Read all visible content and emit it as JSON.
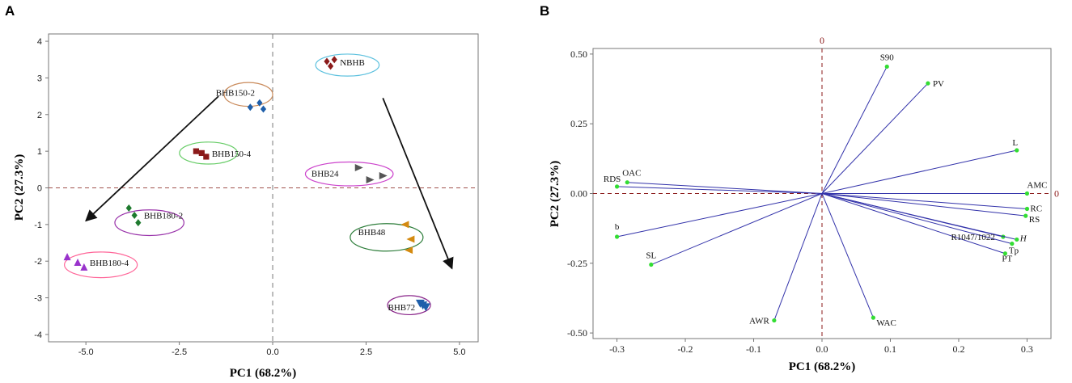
{
  "chart_data": [
    {
      "panel": "A",
      "type": "scatter",
      "xlabel": "PC1 (68.2%)",
      "ylabel": "PC2 (27.3%)",
      "xlim": [
        -6.0,
        5.5
      ],
      "ylim": [
        -4.2,
        4.2
      ],
      "xticks": [
        {
          "v": -5.0,
          "t": "-5.0"
        },
        {
          "v": -2.5,
          "t": "-2.5"
        },
        {
          "v": 0.0,
          "t": "0.0"
        },
        {
          "v": 2.5,
          "t": "2.5"
        },
        {
          "v": 5.0,
          "t": "5.0"
        }
      ],
      "yticks": [
        {
          "v": 4,
          "t": "4"
        },
        {
          "v": 3,
          "t": "3"
        },
        {
          "v": 2,
          "t": "2"
        },
        {
          "v": 1,
          "t": "1"
        },
        {
          "v": 0,
          "t": "0"
        },
        {
          "v": -1,
          "t": "-1"
        },
        {
          "v": -2,
          "t": "-2"
        },
        {
          "v": -3,
          "t": "-3"
        },
        {
          "v": -4,
          "t": "-4"
        }
      ],
      "groups": [
        {
          "name": "NBHB",
          "color": "#8b1a1a",
          "edge": "#5bc0de",
          "marker": "diamond",
          "points": [
            [
              1.45,
              3.45
            ],
            [
              1.65,
              3.5
            ],
            [
              1.55,
              3.32
            ]
          ],
          "center": [
            2.0,
            3.35
          ],
          "radius": [
            1.7,
            0.6
          ]
        },
        {
          "name": "BHB150-2",
          "color": "#1f5faa",
          "edge": "#c98a5a",
          "marker": "diamond",
          "points": [
            [
              -0.6,
              2.2
            ],
            [
              -0.35,
              2.32
            ],
            [
              -0.25,
              2.15
            ]
          ],
          "center": [
            -0.65,
            2.55
          ],
          "radius": [
            1.3,
            0.65
          ]
        },
        {
          "name": "BHB150-4",
          "color": "#8b1a1a",
          "edge": "#66cc66",
          "marker": "square",
          "points": [
            [
              -2.05,
              1.0
            ],
            [
              -1.9,
              0.95
            ],
            [
              -1.78,
              0.85
            ]
          ],
          "center": [
            -1.72,
            0.95
          ],
          "radius": [
            1.55,
            0.6
          ]
        },
        {
          "name": "BHB24",
          "color": "#555555",
          "edge": "#cc44cc",
          "marker": "triangle-right",
          "points": [
            [
              2.3,
              0.55
            ],
            [
              2.6,
              0.22
            ],
            [
              2.95,
              0.33
            ]
          ],
          "center": [
            2.05,
            0.38
          ],
          "radius": [
            2.35,
            0.65
          ]
        },
        {
          "name": "BHB180-2",
          "color": "#1e7a2e",
          "edge": "#9933aa",
          "marker": "diamond",
          "points": [
            [
              -3.85,
              -0.55
            ],
            [
              -3.7,
              -0.75
            ],
            [
              -3.6,
              -0.95
            ]
          ],
          "center": [
            -3.3,
            -0.95
          ],
          "radius": [
            1.85,
            0.7
          ]
        },
        {
          "name": "BHB48",
          "color": "#d48a10",
          "edge": "#2d7d3a",
          "marker": "triangle-left",
          "points": [
            [
              3.55,
              -1.0
            ],
            [
              3.7,
              -1.4
            ],
            [
              3.65,
              -1.7
            ]
          ],
          "center": [
            3.05,
            -1.35
          ],
          "radius": [
            1.95,
            0.75
          ]
        },
        {
          "name": "BHB180-4",
          "color": "#9933cc",
          "edge": "#ff6699",
          "marker": "triangle-up",
          "points": [
            [
              -5.5,
              -1.9
            ],
            [
              -5.22,
              -2.05
            ],
            [
              -5.05,
              -2.18
            ]
          ],
          "center": [
            -4.6,
            -2.1
          ],
          "radius": [
            1.95,
            0.7
          ]
        },
        {
          "name": "BHB72",
          "color": "#1f5faa",
          "edge": "#882288",
          "marker": "triangle-down",
          "points": [
            [
              3.95,
              -3.15
            ],
            [
              4.1,
              -3.25
            ],
            [
              4.02,
              -3.2
            ]
          ],
          "center": [
            3.65,
            -3.2
          ],
          "radius": [
            1.15,
            0.52
          ]
        }
      ],
      "arrows": [
        {
          "from": [
            -1.45,
            2.5
          ],
          "to": [
            -5.0,
            -0.9
          ]
        },
        {
          "from": [
            2.95,
            2.45
          ],
          "to": [
            4.8,
            -2.2
          ]
        }
      ]
    },
    {
      "panel": "B",
      "type": "biplot",
      "xlabel": "PC1 (68.2%)",
      "ylabel": "PC2 (27.3%)",
      "xlim": [
        -0.335,
        0.335
      ],
      "ylim": [
        -0.52,
        0.52
      ],
      "xticks": [
        {
          "v": -0.3,
          "t": "-0.3"
        },
        {
          "v": -0.2,
          "t": "-0.2"
        },
        {
          "v": -0.1,
          "t": "-0.1"
        },
        {
          "v": 0.0,
          "t": "0.0"
        },
        {
          "v": 0.1,
          "t": "0.1"
        },
        {
          "v": 0.2,
          "t": "0.2"
        },
        {
          "v": 0.3,
          "t": "0.3"
        }
      ],
      "yticks": [
        {
          "v": 0.5,
          "t": "0.50"
        },
        {
          "v": 0.25,
          "t": "0.25"
        },
        {
          "v": 0.0,
          "t": "0.00"
        },
        {
          "v": -0.25,
          "t": "-0.25"
        },
        {
          "v": -0.5,
          "t": "-0.50"
        }
      ],
      "zero_label": "0",
      "vectors": [
        {
          "name": "S90",
          "x": 0.095,
          "y": 0.455
        },
        {
          "name": "PV",
          "x": 0.155,
          "y": 0.395
        },
        {
          "name": "L",
          "x": 0.285,
          "y": 0.155
        },
        {
          "name": "AMC",
          "x": 0.3,
          "y": 0.0
        },
        {
          "name": "RC",
          "x": 0.3,
          "y": -0.055
        },
        {
          "name": "RS",
          "x": 0.298,
          "y": -0.08
        },
        {
          "name": "R1047/1022",
          "x": 0.265,
          "y": -0.155
        },
        {
          "name": "H",
          "x": 0.285,
          "y": -0.165
        },
        {
          "name": "Tp",
          "x": 0.278,
          "y": -0.18
        },
        {
          "name": "PT",
          "x": 0.268,
          "y": -0.215
        },
        {
          "name": "WAC",
          "x": 0.075,
          "y": -0.445
        },
        {
          "name": "AWR",
          "x": -0.07,
          "y": -0.455
        },
        {
          "name": "SL",
          "x": -0.25,
          "y": -0.255
        },
        {
          "name": "b",
          "x": -0.3,
          "y": -0.155
        },
        {
          "name": "RDS",
          "x": -0.3,
          "y": 0.025
        },
        {
          "name": "OAC",
          "x": -0.285,
          "y": 0.04
        }
      ]
    }
  ],
  "panels": {
    "A": {
      "letter": "A",
      "xlabel": "PC1 (68.2%)",
      "ylabel": "PC2 (27.3%)",
      "ticks": [
        "-5.0",
        "-2.5",
        "0.0",
        "2.5",
        "5.0",
        "4",
        "3",
        "2",
        "1",
        "0",
        "-1",
        "-2",
        "-3",
        "-4"
      ],
      "groups": [
        "NBHB",
        "BHB150-2",
        "BHB150-4",
        "BHB24",
        "BHB180-2",
        "BHB48",
        "BHB180-4",
        "BHB72"
      ]
    },
    "B": {
      "letter": "B",
      "xlabel": "PC1 (68.2%)",
      "ylabel": "PC2 (27.3%)",
      "ticks": [
        "-0.3",
        "-0.2",
        "-0.1",
        "0.0",
        "0.1",
        "0.2",
        "0.3",
        "0.50",
        "0.25",
        "0.00",
        "-0.25",
        "-0.50"
      ],
      "zero_label": "0",
      "vectors": [
        "S90",
        "PV",
        "L",
        "AMC",
        "RC",
        "RS",
        "R1047/1022",
        "H",
        "Tp",
        "PT",
        "WAC",
        "AWR",
        "SL",
        "b",
        "RDS",
        "OAC"
      ]
    }
  }
}
